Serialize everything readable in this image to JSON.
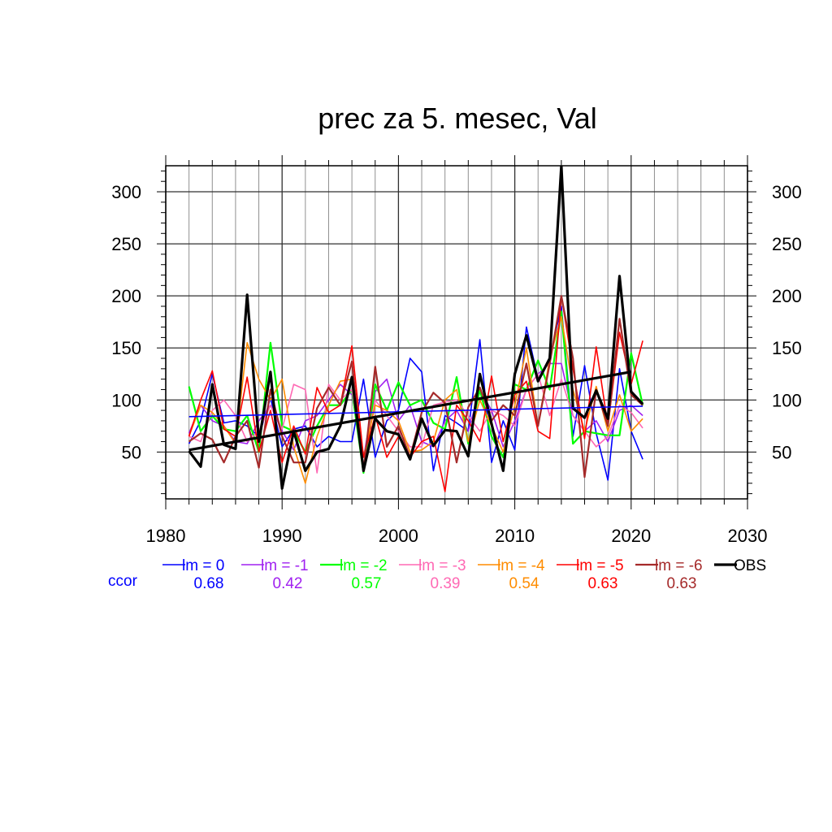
{
  "chart_data": {
    "type": "line",
    "title": "prec za 5. mesec, Val",
    "xlabel": "",
    "ylabel": "",
    "xlim": [
      1980,
      2030
    ],
    "ylim": [
      5,
      325
    ],
    "x_ticks": [
      1980,
      1990,
      2000,
      2010,
      2020,
      2030
    ],
    "y_ticks": [
      50,
      100,
      150,
      200,
      250,
      300
    ],
    "y_ticks_right": true,
    "grid": true,
    "legend_position": "bottom",
    "ccor_label": "ccor",
    "ccor_color": "#0000ff",
    "x": [
      1982,
      1983,
      1984,
      1985,
      1986,
      1987,
      1988,
      1989,
      1990,
      1991,
      1992,
      1993,
      1994,
      1995,
      1996,
      1997,
      1998,
      1999,
      2000,
      2001,
      2002,
      2003,
      2004,
      2005,
      2006,
      2007,
      2008,
      2009,
      2010,
      2011,
      2012,
      2013,
      2014,
      2015,
      2016,
      2017,
      2018,
      2019,
      2020,
      2021
    ],
    "series": [
      {
        "name": "lm = 0",
        "color": "#0000ff",
        "width": 1.6,
        "ccor": "0.68",
        "values": [
          58,
          80,
          125,
          78,
          80,
          75,
          65,
          102,
          55,
          72,
          75,
          55,
          65,
          60,
          60,
          120,
          45,
          80,
          90,
          140,
          127,
          32,
          85,
          78,
          70,
          158,
          40,
          80,
          52,
          170,
          120,
          140,
          190,
          65,
          133,
          68,
          23,
          130,
          70,
          43
        ]
      },
      {
        "name": "lm = -1",
        "color": "#a020f0",
        "width": 1.6,
        "ccor": "0.42",
        "values": [
          68,
          95,
          80,
          75,
          60,
          58,
          80,
          95,
          70,
          52,
          80,
          85,
          100,
          115,
          105,
          45,
          108,
          120,
          80,
          95,
          60,
          55,
          80,
          90,
          70,
          110,
          90,
          55,
          80,
          110,
          125,
          135,
          135,
          85,
          70,
          80,
          60,
          90,
          95,
          85
        ]
      },
      {
        "name": "lm = -2",
        "color": "#00ff00",
        "width": 2.2,
        "ccor": "0.57",
        "values": [
          113,
          70,
          85,
          72,
          70,
          85,
          50,
          155,
          75,
          70,
          50,
          75,
          95,
          95,
          110,
          30,
          115,
          90,
          117,
          95,
          100,
          78,
          72,
          122,
          58,
          110,
          65,
          45,
          115,
          110,
          138,
          110,
          185,
          58,
          70,
          68,
          66,
          66,
          145,
          95
        ]
      },
      {
        "name": "lm = -3",
        "color": "#ff69b4",
        "width": 1.6,
        "ccor": "0.39",
        "values": [
          65,
          60,
          90,
          100,
          85,
          60,
          70,
          95,
          72,
          115,
          110,
          30,
          115,
          100,
          110,
          45,
          100,
          85,
          70,
          55,
          55,
          95,
          98,
          100,
          85,
          70,
          90,
          85,
          75,
          110,
          125,
          85,
          120,
          85,
          70,
          55,
          65,
          95,
          88,
          73
        ]
      },
      {
        "name": "lm = -4",
        "color": "#ff8c00",
        "width": 1.6,
        "ccor": "0.54",
        "values": [
          65,
          95,
          88,
          75,
          58,
          155,
          120,
          100,
          120,
          55,
          20,
          65,
          95,
          118,
          120,
          45,
          95,
          90,
          80,
          50,
          52,
          60,
          100,
          110,
          60,
          100,
          75,
          50,
          95,
          150,
          75,
          140,
          180,
          110,
          70,
          113,
          70,
          105,
          70,
          82
        ]
      },
      {
        "name": "lm = -5",
        "color": "#ff0000",
        "width": 1.6,
        "ccor": "0.63",
        "values": [
          65,
          100,
          128,
          72,
          65,
          122,
          50,
          90,
          40,
          75,
          48,
          112,
          88,
          95,
          152,
          45,
          85,
          45,
          65,
          45,
          60,
          65,
          12,
          95,
          80,
          60,
          123,
          60,
          105,
          118,
          70,
          63,
          200,
          130,
          63,
          151,
          75,
          165,
          115,
          157
        ]
      },
      {
        "name": "lm = -6",
        "color": "#a52a2a",
        "width": 2.2,
        "ccor": "0.63",
        "values": [
          60,
          68,
          62,
          40,
          65,
          80,
          35,
          110,
          65,
          40,
          40,
          92,
          112,
          95,
          137,
          32,
          132,
          55,
          75,
          45,
          88,
          107,
          97,
          40,
          93,
          112,
          80,
          95,
          85,
          135,
          75,
          135,
          200,
          140,
          26,
          110,
          75,
          178,
          105,
          95
        ]
      },
      {
        "name": "OBS",
        "color": "#000000",
        "width": 3.2,
        "ccor": "",
        "values": [
          51,
          36,
          115,
          57,
          53,
          201,
          60,
          127,
          15,
          70,
          32,
          50,
          53,
          75,
          122,
          32,
          82,
          70,
          67,
          43,
          82,
          56,
          71,
          70,
          46,
          125,
          77,
          32,
          125,
          162,
          118,
          140,
          325,
          92,
          83,
          109,
          82,
          219,
          108,
          96
        ]
      }
    ],
    "trend_lines": [
      {
        "name": "lm = 0 trend",
        "color": "#0000ff",
        "width": 1.6,
        "x": [
          1982,
          2021
        ],
        "y": [
          84,
          94
        ]
      },
      {
        "name": "OBS trend",
        "color": "#000000",
        "width": 3.2,
        "x": [
          1982,
          2020
        ],
        "y": [
          52,
          127
        ]
      }
    ]
  }
}
